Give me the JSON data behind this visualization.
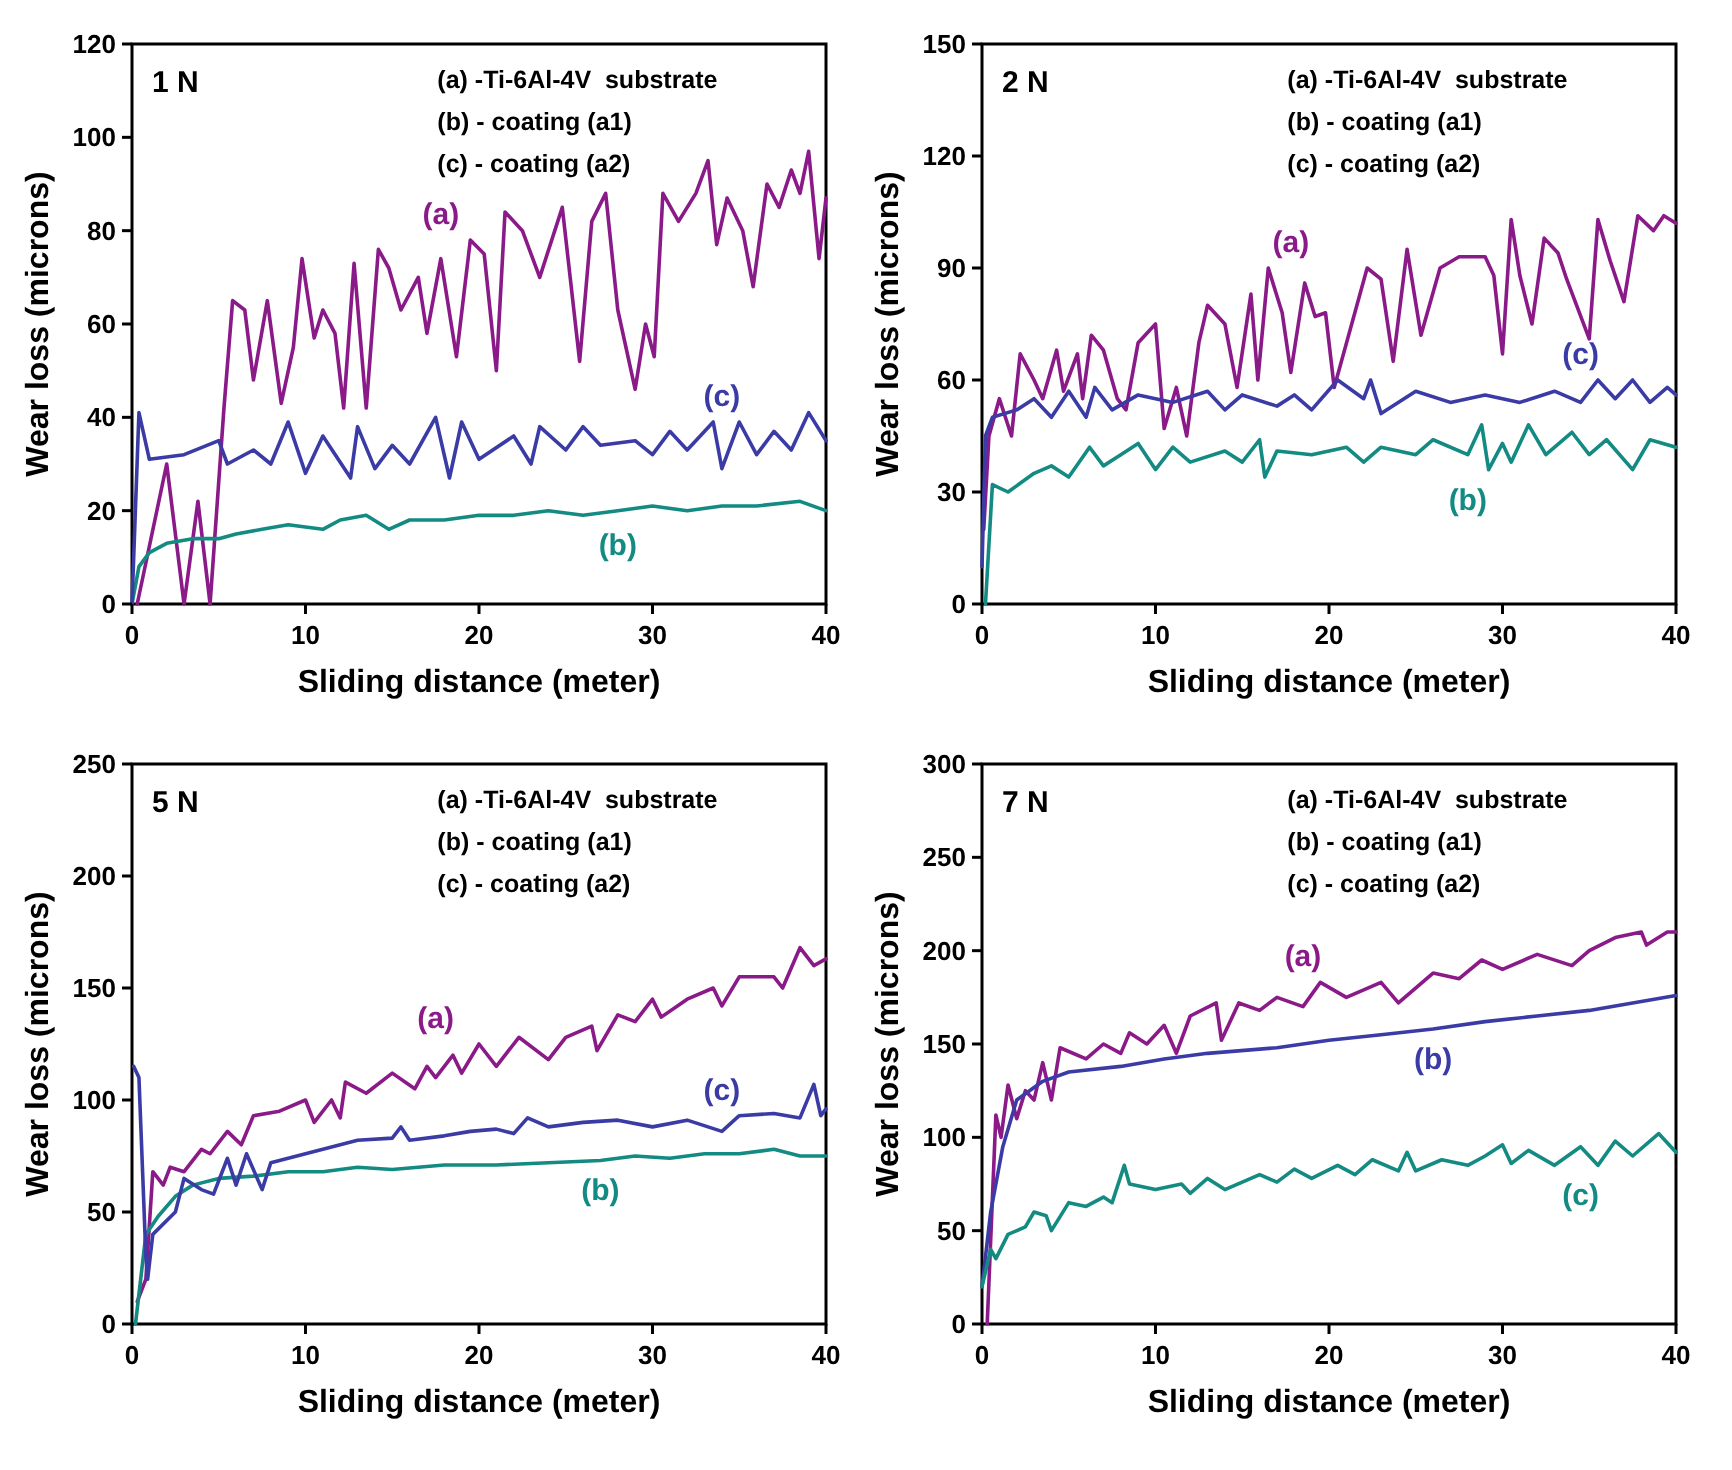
{
  "chart_data": [
    {
      "type": "line",
      "title": "1 N",
      "xlabel": "Sliding distance (meter)",
      "ylabel": "Wear loss (microns)",
      "xlim": [
        0,
        40
      ],
      "xticks": [
        0,
        10,
        20,
        30,
        40
      ],
      "ylim": [
        0,
        120
      ],
      "yticks": [
        0,
        20,
        40,
        60,
        80,
        100,
        120
      ],
      "grid": false,
      "marker": "none",
      "line_style": "solid",
      "annotations": [
        "(a) -Ti-6Al-4V  substrate",
        "(b) - coating (a1)",
        "(c) - coating (a2)"
      ],
      "series": [
        {
          "name": "(a)",
          "color": "#8b1a89",
          "x": [
            0.3,
            2,
            3,
            3.8,
            4.5,
            5.3,
            5.8,
            6.5,
            7,
            7.8,
            8.6,
            9.3,
            9.8,
            10.5,
            11,
            11.7,
            12.2,
            12.8,
            13.5,
            14.2,
            14.8,
            15.5,
            16.5,
            17,
            17.8,
            18.7,
            19.5,
            20.3,
            21,
            21.5,
            22.5,
            23.5,
            24.8,
            25.8,
            26.5,
            27.3,
            28,
            29,
            29.6,
            30.1,
            30.6,
            31.5,
            32.5,
            33.2,
            33.7,
            34.3,
            35.2,
            35.8,
            36.6,
            37.3,
            38,
            38.5,
            39,
            39.6,
            40
          ],
          "values": [
            0,
            30,
            0,
            22,
            0,
            42,
            65,
            63,
            48,
            65,
            43,
            55,
            74,
            57,
            63,
            58,
            42,
            73,
            42,
            76,
            72,
            63,
            70,
            58,
            74,
            53,
            78,
            75,
            50,
            84,
            80,
            70,
            85,
            52,
            82,
            88,
            63,
            46,
            60,
            53,
            88,
            82,
            88,
            95,
            77,
            87,
            80,
            68,
            90,
            85,
            93,
            88,
            97,
            74,
            87
          ]
        },
        {
          "name": "(b)",
          "color": "#138a82",
          "x": [
            0,
            0.4,
            1,
            2,
            3.5,
            5,
            6,
            7.5,
            9,
            11,
            12,
            13.5,
            14.8,
            16,
            18,
            20,
            22,
            24,
            26,
            28,
            30,
            32,
            34,
            36,
            38.5,
            40
          ],
          "values": [
            0,
            8,
            11,
            13,
            14,
            14,
            15,
            16,
            17,
            16,
            18,
            19,
            16,
            18,
            18,
            19,
            19,
            20,
            19,
            20,
            21,
            20,
            21,
            21,
            22,
            20
          ]
        },
        {
          "name": "(c)",
          "color": "#3b3ba6",
          "x": [
            0,
            0.4,
            1,
            3,
            5,
            5.5,
            7,
            8,
            9,
            10,
            11,
            12.6,
            13,
            14,
            15,
            16,
            17.5,
            18.3,
            19,
            20,
            22,
            23,
            23.5,
            25,
            26,
            27,
            29,
            30,
            31,
            32,
            33.5,
            34,
            35,
            36,
            37,
            38,
            39,
            40
          ],
          "values": [
            0,
            41,
            31,
            32,
            35,
            30,
            33,
            30,
            39,
            28,
            36,
            27,
            38,
            29,
            34,
            30,
            40,
            27,
            39,
            31,
            36,
            30,
            38,
            33,
            38,
            34,
            35,
            32,
            37,
            33,
            39,
            29,
            39,
            32,
            37,
            33,
            41,
            35
          ]
        }
      ]
    },
    {
      "type": "line",
      "title": "2 N",
      "xlabel": "Sliding distance (meter)",
      "ylabel": "Wear loss (microns)",
      "xlim": [
        0,
        40
      ],
      "xticks": [
        0,
        10,
        20,
        30,
        40
      ],
      "ylim": [
        0,
        150
      ],
      "yticks": [
        0,
        30,
        60,
        90,
        120,
        150
      ],
      "grid": false,
      "marker": "none",
      "line_style": "solid",
      "annotations": [
        "(a) -Ti-6Al-4V  substrate",
        "(b) - coating (a1)",
        "(c) - coating (a2)"
      ],
      "series": [
        {
          "name": "(a)",
          "color": "#8b1a89",
          "x": [
            0.1,
            0.4,
            1,
            1.7,
            2.2,
            3,
            3.5,
            4.3,
            4.7,
            5.5,
            5.8,
            6.3,
            7,
            7.8,
            8.3,
            9,
            10,
            10.5,
            11.2,
            11.8,
            12.5,
            13,
            14,
            14.7,
            15.5,
            15.9,
            16.5,
            17.3,
            17.8,
            18.6,
            19.2,
            19.8,
            20.3,
            22.2,
            23,
            23.7,
            24.5,
            25.3,
            26.4,
            27.5,
            29,
            29.5,
            30,
            30.5,
            31,
            31.7,
            32.4,
            33.2,
            33.7,
            35,
            35.5,
            36.2,
            37,
            37.8,
            38.7,
            39.3,
            40
          ],
          "values": [
            20,
            45,
            55,
            45,
            67,
            60,
            55,
            68,
            57,
            67,
            55,
            72,
            68,
            55,
            52,
            70,
            75,
            47,
            58,
            45,
            70,
            80,
            75,
            58,
            83,
            60,
            90,
            78,
            62,
            86,
            77,
            78,
            58,
            90,
            87,
            65,
            95,
            72,
            90,
            93,
            93,
            88,
            67,
            103,
            88,
            75,
            98,
            94,
            87,
            71,
            103,
            92,
            81,
            104,
            100,
            104,
            102
          ]
        },
        {
          "name": "(b)",
          "color": "#138a82",
          "x": [
            0.2,
            0.6,
            1.5,
            3,
            4,
            5,
            6.2,
            7,
            8,
            9,
            10,
            11,
            12,
            14,
            15,
            16,
            16.3,
            17,
            19,
            21,
            22,
            23,
            25,
            26,
            28,
            28.8,
            29.2,
            30,
            30.5,
            31.5,
            32.5,
            34,
            35,
            36,
            37.5,
            38.5,
            40
          ],
          "values": [
            0,
            32,
            30,
            35,
            37,
            34,
            42,
            37,
            40,
            43,
            36,
            42,
            38,
            41,
            38,
            44,
            34,
            41,
            40,
            42,
            38,
            42,
            40,
            44,
            40,
            48,
            36,
            43,
            38,
            48,
            40,
            46,
            40,
            44,
            36,
            44,
            42
          ]
        },
        {
          "name": "(c)",
          "color": "#3b3ba6",
          "x": [
            0,
            0.2,
            0.6,
            2,
            3,
            4,
            5,
            6,
            6.5,
            7.5,
            9,
            11,
            13,
            14,
            15,
            17,
            18,
            19,
            20.5,
            22,
            22.4,
            23,
            25,
            27,
            29,
            31,
            33,
            34.5,
            35.5,
            36.5,
            37.5,
            38.5,
            39.5,
            40
          ],
          "values": [
            10,
            45,
            50,
            52,
            55,
            50,
            57,
            50,
            58,
            52,
            56,
            54,
            57,
            52,
            56,
            53,
            56,
            52,
            60,
            55,
            60,
            51,
            57,
            54,
            56,
            54,
            57,
            54,
            60,
            55,
            60,
            54,
            58,
            56
          ]
        }
      ]
    },
    {
      "type": "line",
      "title": "5 N",
      "xlabel": "Sliding distance (meter)",
      "ylabel": "Wear loss (microns)",
      "xlim": [
        0,
        40
      ],
      "xticks": [
        0,
        10,
        20,
        30,
        40
      ],
      "ylim": [
        0,
        250
      ],
      "yticks": [
        0,
        50,
        100,
        150,
        200,
        250
      ],
      "grid": false,
      "marker": "none",
      "line_style": "solid",
      "annotations": [
        "(a) -Ti-6Al-4V  substrate",
        "(b) - coating (a1)",
        "(c) - coating (a2)"
      ],
      "series": [
        {
          "name": "(a)",
          "color": "#8b1a89",
          "x": [
            0.3,
            0.8,
            1.2,
            1.8,
            2.2,
            3,
            4,
            4.5,
            5.5,
            6.3,
            7,
            8.5,
            10,
            10.5,
            11.5,
            12,
            12.3,
            13.5,
            15,
            16.3,
            17,
            17.5,
            18.5,
            19,
            20,
            21,
            22.3,
            24,
            25,
            26.5,
            26.8,
            28,
            29,
            30,
            30.5,
            32,
            33.5,
            34,
            35,
            37,
            37.5,
            38.5,
            39.3,
            40
          ],
          "values": [
            10,
            20,
            68,
            62,
            70,
            68,
            78,
            76,
            86,
            80,
            93,
            95,
            100,
            90,
            100,
            92,
            108,
            103,
            112,
            105,
            115,
            110,
            120,
            112,
            125,
            115,
            128,
            118,
            128,
            133,
            122,
            138,
            135,
            145,
            137,
            145,
            150,
            142,
            155,
            155,
            150,
            168,
            160,
            163
          ]
        },
        {
          "name": "(b)",
          "color": "#138a82",
          "x": [
            0.2,
            0.8,
            1.5,
            2.5,
            3.5,
            5,
            7,
            9,
            11,
            13,
            15,
            18,
            21,
            24,
            27,
            29,
            31,
            33,
            35,
            37,
            38.5,
            40
          ],
          "values": [
            0,
            40,
            48,
            57,
            62,
            65,
            66,
            68,
            68,
            70,
            69,
            71,
            71,
            72,
            73,
            75,
            74,
            76,
            76,
            78,
            75,
            75
          ]
        },
        {
          "name": "(c)",
          "color": "#3b3ba6",
          "x": [
            0.1,
            0.4,
            0.8,
            0.9,
            1.2,
            2.5,
            3,
            4,
            4.7,
            5.5,
            6,
            6.6,
            7.5,
            8,
            9,
            10,
            11,
            13,
            15,
            15.5,
            16,
            18,
            19.5,
            21,
            22,
            22.8,
            24,
            26,
            28,
            30,
            32,
            34,
            35,
            37,
            38.5,
            39.3,
            39.7,
            40
          ],
          "values": [
            115,
            110,
            30,
            20,
            40,
            50,
            65,
            60,
            58,
            74,
            62,
            76,
            60,
            72,
            74,
            76,
            78,
            82,
            83,
            88,
            82,
            84,
            86,
            87,
            85,
            92,
            88,
            90,
            91,
            88,
            91,
            86,
            93,
            94,
            92,
            107,
            93,
            96
          ]
        }
      ]
    },
    {
      "type": "line",
      "title": "7 N",
      "xlabel": "Sliding distance (meter)",
      "ylabel": "Wear loss (microns)",
      "xlim": [
        0,
        40
      ],
      "xticks": [
        0,
        10,
        20,
        30,
        40
      ],
      "ylim": [
        0,
        300
      ],
      "yticks": [
        0,
        50,
        100,
        150,
        200,
        250,
        300
      ],
      "grid": false,
      "marker": "none",
      "line_style": "solid",
      "annotations": [
        "(a) -Ti-6Al-4V  substrate",
        "(b) - coating (a1)",
        "(c) - coating (a2)"
      ],
      "series": [
        {
          "name": "(a)",
          "color": "#8b1a89",
          "x": [
            0.3,
            0.8,
            1.1,
            1.5,
            2,
            2.5,
            3,
            3.5,
            4,
            4.5,
            6,
            7,
            8,
            8.5,
            9.5,
            10.5,
            11.2,
            12,
            13.5,
            13.8,
            14.8,
            16,
            17,
            18.5,
            19.5,
            21,
            23,
            24,
            26,
            27.5,
            28.8,
            30,
            32,
            34,
            35,
            36.5,
            38,
            38.3,
            39.5,
            40
          ],
          "values": [
            0,
            112,
            100,
            128,
            110,
            125,
            120,
            140,
            120,
            148,
            142,
            150,
            145,
            156,
            150,
            160,
            145,
            165,
            172,
            152,
            172,
            168,
            175,
            170,
            183,
            175,
            183,
            172,
            188,
            185,
            195,
            190,
            198,
            192,
            200,
            207,
            210,
            203,
            210,
            210
          ]
        },
        {
          "name": "(b)",
          "color": "#3b3ba6",
          "x": [
            0,
            0.5,
            1.2,
            2,
            3.5,
            5,
            8,
            10.5,
            13,
            17,
            20,
            23,
            26,
            29,
            32,
            35,
            37.5,
            40
          ],
          "values": [
            20,
            60,
            95,
            120,
            130,
            135,
            138,
            142,
            145,
            148,
            152,
            155,
            158,
            162,
            165,
            168,
            172,
            176
          ]
        },
        {
          "name": "(c)",
          "color": "#138a82",
          "x": [
            0,
            0.5,
            0.8,
            1.5,
            2.5,
            3,
            3.7,
            4,
            5,
            6,
            7,
            7.5,
            8.2,
            8.5,
            10,
            11.5,
            12,
            13,
            14,
            16,
            17,
            18,
            19,
            20.5,
            21.5,
            22.5,
            24,
            24.5,
            25,
            26.5,
            28,
            29,
            30,
            30.5,
            31.5,
            33,
            34.5,
            35.5,
            36.5,
            37.5,
            39,
            40
          ],
          "values": [
            20,
            40,
            35,
            48,
            52,
            60,
            58,
            50,
            65,
            63,
            68,
            65,
            85,
            75,
            72,
            75,
            70,
            78,
            72,
            80,
            76,
            83,
            78,
            85,
            80,
            88,
            82,
            92,
            82,
            88,
            85,
            90,
            96,
            86,
            93,
            85,
            95,
            85,
            98,
            90,
            102,
            92
          ]
        }
      ]
    }
  ]
}
